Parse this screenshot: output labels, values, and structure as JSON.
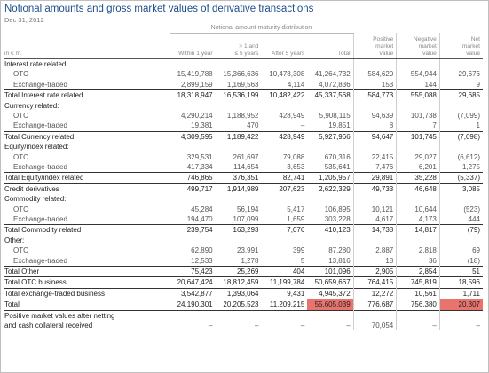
{
  "title": "Notional amounts and gross market values of derivative transactions",
  "date": "Dec 31, 2012",
  "group_header": "Notional amount maturity distribution",
  "columns": {
    "label": "in € m.",
    "within1": "Within 1 year",
    "y1_5": "> 1 and\n≤ 5 years",
    "after5": "After 5 years",
    "total": "Total",
    "pos": "Positive\nmarket\nvalue",
    "neg": "Negative\nmarket\nvalue",
    "net": "Net\nmarket\nvalue"
  },
  "rows": [
    {
      "type": "sec",
      "label": "Interest rate related:",
      "v": [
        "",
        "",
        "",
        "",
        "",
        "",
        ""
      ]
    },
    {
      "type": "sub",
      "label": "OTC",
      "v": [
        "15,419,788",
        "15,366,636",
        "10,478,308",
        "41,264,732",
        "584,620",
        "554,944",
        "29,676"
      ]
    },
    {
      "type": "sub",
      "label": "Exchange-traded",
      "v": [
        "2,899,159",
        "1,169,563",
        "4,114",
        "4,072,836",
        "153",
        "144",
        "9"
      ]
    },
    {
      "type": "tot",
      "label": "Total Interest rate related",
      "v": [
        "18,318,947",
        "16,536,199",
        "10,482,422",
        "45,337,568",
        "584,773",
        "555,088",
        "29,685"
      ]
    },
    {
      "type": "sec",
      "label": "Currency related:",
      "v": [
        "",
        "",
        "",
        "",
        "",
        "",
        ""
      ]
    },
    {
      "type": "sub",
      "label": "OTC",
      "v": [
        "4,290,214",
        "1,188,952",
        "428,949",
        "5,908,115",
        "94,639",
        "101,738",
        "(7,099)"
      ]
    },
    {
      "type": "sub",
      "label": "Exchange-traded",
      "v": [
        "19,381",
        "470",
        "–",
        "19,851",
        "8",
        "7",
        "1"
      ]
    },
    {
      "type": "tot",
      "label": "Total Currency related",
      "v": [
        "4,309,595",
        "1,189,422",
        "428,949",
        "5,927,966",
        "94,647",
        "101,745",
        "(7,098)"
      ]
    },
    {
      "type": "sec",
      "label": "Equity/index related:",
      "v": [
        "",
        "",
        "",
        "",
        "",
        "",
        ""
      ]
    },
    {
      "type": "sub",
      "label": "OTC",
      "v": [
        "329,531",
        "261,697",
        "79,088",
        "670,316",
        "22,415",
        "29,027",
        "(6,612)"
      ]
    },
    {
      "type": "sub",
      "label": "Exchange-traded",
      "v": [
        "417,334",
        "114,654",
        "3,653",
        "535,641",
        "7,476",
        "6,201",
        "1,275"
      ]
    },
    {
      "type": "tot",
      "label": "Total Equity/index related",
      "v": [
        "746,865",
        "376,351",
        "82,741",
        "1,205,957",
        "29,891",
        "35,228",
        "(5,337)"
      ]
    },
    {
      "type": "tot",
      "label": "Credit derivatives",
      "v": [
        "499,717",
        "1,914,989",
        "207,623",
        "2,622,329",
        "49,733",
        "46,648",
        "3,085"
      ]
    },
    {
      "type": "sec",
      "label": "Commodity related:",
      "v": [
        "",
        "",
        "",
        "",
        "",
        "",
        ""
      ]
    },
    {
      "type": "sub",
      "label": "OTC",
      "v": [
        "45,284",
        "56,194",
        "5,417",
        "106,895",
        "10,121",
        "10,644",
        "(523)"
      ]
    },
    {
      "type": "sub",
      "label": "Exchange-traded",
      "v": [
        "194,470",
        "107,099",
        "1,659",
        "303,228",
        "4,617",
        "4,173",
        "444"
      ]
    },
    {
      "type": "tot",
      "label": "Total Commodity related",
      "v": [
        "239,754",
        "163,293",
        "7,076",
        "410,123",
        "14,738",
        "14,817",
        "(79)"
      ]
    },
    {
      "type": "sec",
      "label": "Other:",
      "v": [
        "",
        "",
        "",
        "",
        "",
        "",
        ""
      ]
    },
    {
      "type": "sub",
      "label": "OTC",
      "v": [
        "62,890",
        "23,991",
        "399",
        "87,280",
        "2,887",
        "2,818",
        "69"
      ]
    },
    {
      "type": "sub",
      "label": "Exchange-traded",
      "v": [
        "12,533",
        "1,278",
        "5",
        "13,816",
        "18",
        "36",
        "(18)"
      ]
    },
    {
      "type": "tot",
      "label": "Total Other",
      "v": [
        "75,423",
        "25,269",
        "404",
        "101,096",
        "2,905",
        "2,854",
        "51"
      ]
    },
    {
      "type": "tot",
      "label": "Total OTC business",
      "v": [
        "20,647,424",
        "18,812,459",
        "11,199,784",
        "50,659,667",
        "764,415",
        "745,819",
        "18,596"
      ]
    },
    {
      "type": "tot",
      "label": "Total exchange-traded business",
      "v": [
        "3,542,877",
        "1,393,064",
        "9,431",
        "4,945,372",
        "12,272",
        "10,561",
        "1,711"
      ]
    },
    {
      "type": "tot",
      "label": "Total",
      "v": [
        "24,190,301",
        "20,205,523",
        "11,209,215",
        "55,605,039",
        "776,687",
        "756,380",
        "20,307"
      ]
    },
    {
      "type": "tot",
      "label": "Positive market values after netting",
      "v": [
        "",
        "",
        "",
        "",
        "",
        "",
        ""
      ]
    },
    {
      "type": "plain",
      "label": "and cash collateral received",
      "v": [
        "–",
        "–",
        "–",
        "–",
        "70,054",
        "–",
        "–"
      ]
    }
  ],
  "highlight_color": "#e8746d"
}
